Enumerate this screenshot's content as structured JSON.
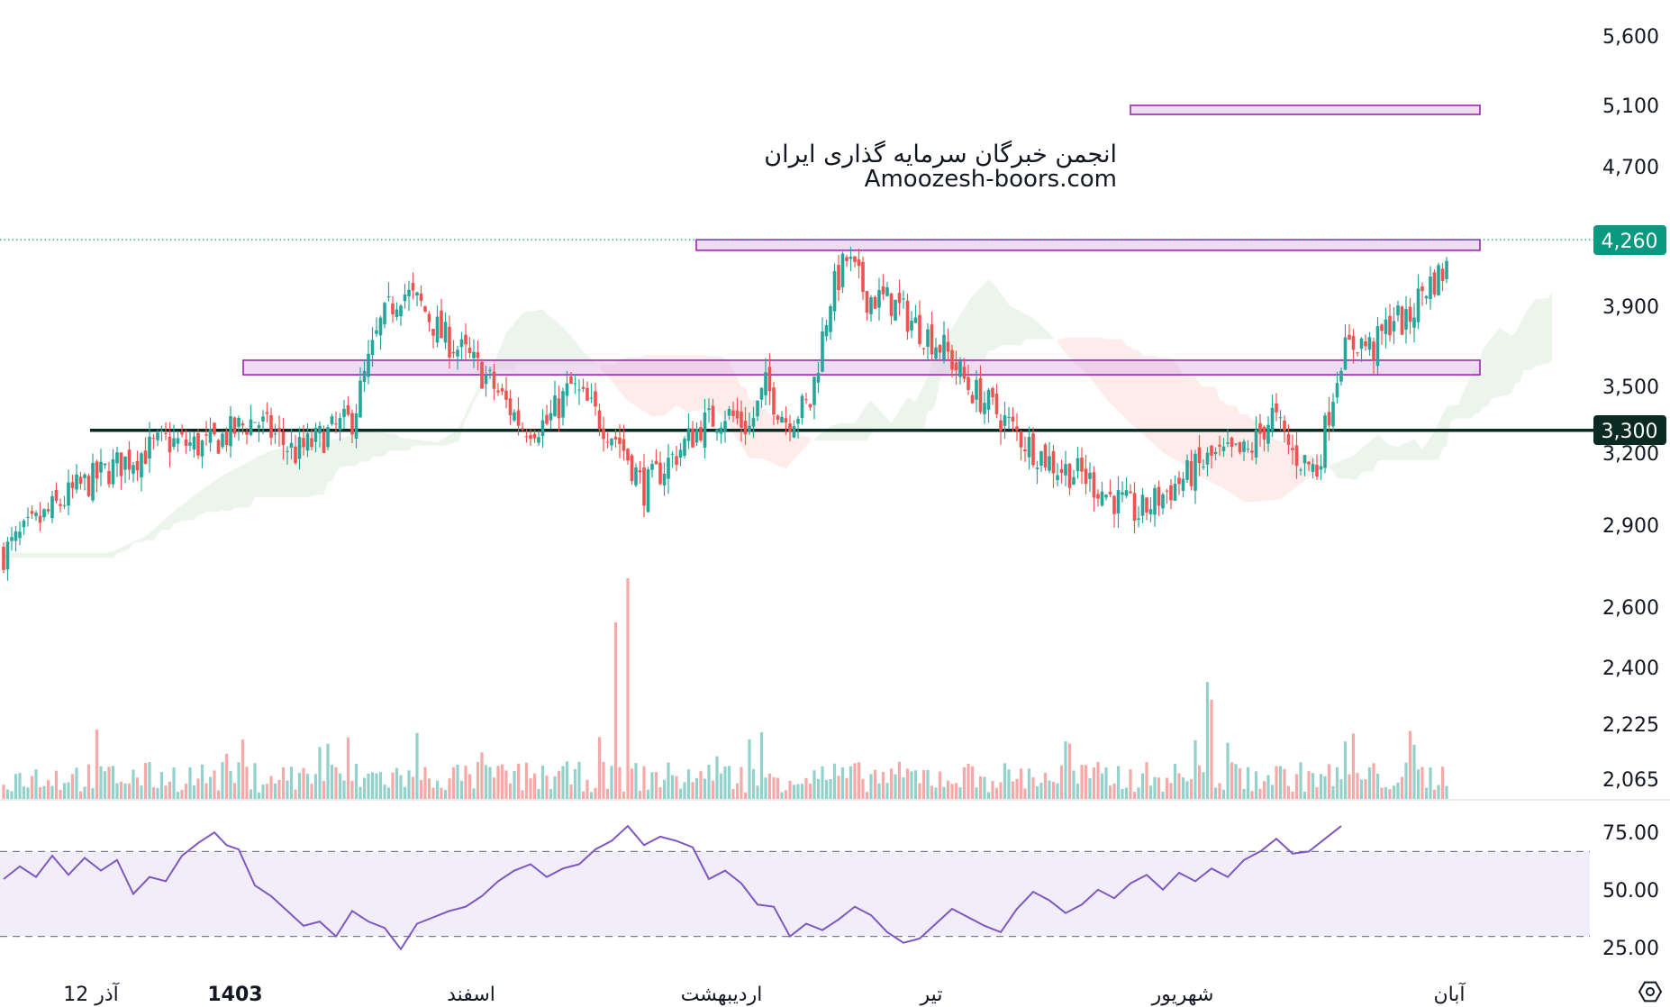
{
  "watermark": {
    "line1": "انجمن خبرگان سرمایه گذاری ایران",
    "line2": "Amoozesh-boors.com"
  },
  "price_axis": {
    "labels": [
      "5,600",
      "5,100",
      "4,700",
      "3,900",
      "3,500",
      "3,200",
      "2,900",
      "2,600",
      "2,400",
      "2,225",
      "2,065"
    ],
    "last_price_badge": "4,260",
    "level_badge": "3,300"
  },
  "rsi_axis": {
    "labels": [
      "75.00",
      "50.00",
      "25.00"
    ]
  },
  "time_axis": {
    "labels": [
      "12 آذر",
      "1403",
      "اسفند",
      "اردیبهشت",
      "تیر",
      "شهریور",
      "آبان"
    ]
  },
  "colors": {
    "up": "#26a69a",
    "down": "#ef5350",
    "rsi_line": "#7e57c2",
    "zone_fill": "#e1bee7",
    "zone_stroke": "#9c27b0",
    "level_line": "#0b2a22",
    "badge_price": "#089981",
    "badge_level": "#0b2a22"
  },
  "chart_data": [
    {
      "type": "candlestick",
      "title": "",
      "y_scale": "log",
      "ylim": [
        2065,
        5600
      ],
      "last_price": 4260,
      "horizontal_levels": [
        3300
      ],
      "zones": [
        {
          "from": 5050,
          "to": 5100
        },
        {
          "from": 4200,
          "to": 4260
        },
        {
          "from": 3555,
          "to": 3625
        }
      ],
      "ichimoku_cloud": true,
      "close_path": [
        [
          0,
          2800
        ],
        [
          18,
          3050
        ],
        [
          28,
          3150
        ],
        [
          40,
          3250
        ],
        [
          50,
          3230
        ],
        [
          62,
          3350
        ],
        [
          72,
          3200
        ],
        [
          86,
          3350
        ],
        [
          93,
          3800
        ],
        [
          98,
          3980
        ],
        [
          103,
          3900
        ],
        [
          108,
          3750
        ],
        [
          114,
          3650
        ],
        [
          120,
          3520
        ],
        [
          128,
          3320
        ],
        [
          134,
          3330
        ],
        [
          140,
          3500
        ],
        [
          146,
          3370
        ],
        [
          152,
          3250
        ],
        [
          158,
          3050
        ],
        [
          166,
          3200
        ],
        [
          172,
          3320
        ],
        [
          178,
          3380
        ],
        [
          184,
          3310
        ],
        [
          188,
          3500
        ],
        [
          193,
          3350
        ],
        [
          199,
          3420
        ],
        [
          204,
          3950
        ],
        [
          208,
          4150
        ],
        [
          213,
          3950
        ],
        [
          219,
          3920
        ],
        [
          225,
          3800
        ],
        [
          232,
          3680
        ],
        [
          238,
          3500
        ],
        [
          245,
          3380
        ],
        [
          252,
          3250
        ],
        [
          260,
          3140
        ],
        [
          266,
          3110
        ],
        [
          273,
          3020
        ],
        [
          280,
          2950
        ],
        [
          290,
          3080
        ],
        [
          298,
          3180
        ],
        [
          307,
          3200
        ],
        [
          313,
          3370
        ],
        [
          318,
          3200
        ],
        [
          324,
          3130
        ],
        [
          330,
          3650
        ],
        [
          334,
          3720
        ],
        [
          338,
          3680
        ],
        [
          343,
          3850
        ],
        [
          346,
          3800
        ],
        [
          350,
          3980
        ],
        [
          356,
          4100
        ]
      ],
      "volume": {
        "range": [
          0,
          100
        ],
        "peak_spikes": [
          100,
          80,
          58,
          53
        ]
      }
    },
    {
      "type": "line",
      "title": "",
      "ylim": [
        15,
        85
      ],
      "bands": [
        30,
        70
      ],
      "series": [
        {
          "points": [
            [
              0,
              57
            ],
            [
              4,
              63
            ],
            [
              8,
              58
            ],
            [
              12,
              68
            ],
            [
              16,
              59
            ],
            [
              20,
              67
            ],
            [
              24,
              61
            ],
            [
              28,
              66
            ],
            [
              32,
              50
            ],
            [
              36,
              58
            ],
            [
              40,
              56
            ],
            [
              44,
              68
            ],
            [
              48,
              74
            ],
            [
              52,
              79
            ],
            [
              55,
              73
            ],
            [
              58,
              71
            ],
            [
              62,
              54
            ],
            [
              66,
              49
            ],
            [
              70,
              42
            ],
            [
              74,
              35
            ],
            [
              78,
              37
            ],
            [
              82,
              30
            ],
            [
              86,
              42
            ],
            [
              90,
              37
            ],
            [
              94,
              34
            ],
            [
              98,
              24
            ],
            [
              102,
              36
            ],
            [
              106,
              39
            ],
            [
              110,
              42
            ],
            [
              114,
              44
            ],
            [
              118,
              49
            ],
            [
              122,
              56
            ],
            [
              126,
              61
            ],
            [
              130,
              64
            ],
            [
              134,
              58
            ],
            [
              138,
              62
            ],
            [
              142,
              64
            ],
            [
              146,
              71
            ],
            [
              150,
              75
            ],
            [
              154,
              82
            ],
            [
              158,
              73
            ],
            [
              162,
              77
            ],
            [
              166,
              75
            ],
            [
              170,
              72
            ],
            [
              174,
              57
            ],
            [
              178,
              61
            ],
            [
              182,
              55
            ],
            [
              186,
              45
            ],
            [
              190,
              44
            ],
            [
              194,
              30
            ],
            [
              198,
              36
            ],
            [
              202,
              33
            ],
            [
              206,
              38
            ],
            [
              210,
              44
            ],
            [
              214,
              40
            ],
            [
              218,
              32
            ],
            [
              222,
              27
            ],
            [
              226,
              29
            ],
            [
              230,
              36
            ],
            [
              234,
              43
            ],
            [
              238,
              39
            ],
            [
              242,
              35
            ],
            [
              246,
              32
            ],
            [
              250,
              43
            ],
            [
              254,
              51
            ],
            [
              258,
              47
            ],
            [
              262,
              41
            ],
            [
              266,
              45
            ],
            [
              270,
              52
            ],
            [
              274,
              48
            ],
            [
              278,
              55
            ],
            [
              282,
              59
            ],
            [
              286,
              52
            ],
            [
              290,
              60
            ],
            [
              294,
              56
            ],
            [
              298,
              62
            ],
            [
              302,
              58
            ],
            [
              306,
              66
            ],
            [
              310,
              70
            ],
            [
              314,
              76
            ],
            [
              318,
              69
            ],
            [
              322,
              70
            ],
            [
              326,
              76
            ],
            [
              330,
              82
            ]
          ]
        }
      ]
    }
  ]
}
